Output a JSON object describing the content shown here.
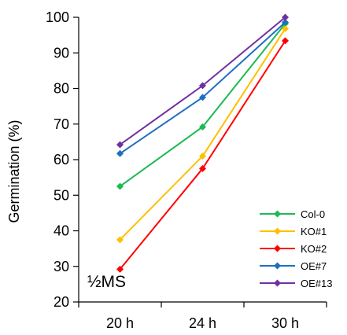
{
  "chart_data": {
    "type": "line",
    "title": "",
    "xlabel": "",
    "ylabel": "Germination (%)",
    "categories": [
      "20 h",
      "24 h",
      "30 h"
    ],
    "ylim": [
      20,
      100
    ],
    "yticks": [
      20,
      30,
      40,
      50,
      60,
      70,
      80,
      90,
      100
    ],
    "grid": false,
    "legend_position": "bottom-right",
    "annotation": "½MS",
    "series": [
      {
        "name": "Col-0",
        "color": "#1db954",
        "values": [
          52.5,
          69.2,
          98.2
        ]
      },
      {
        "name": "KO#1",
        "color": "#ffc000",
        "values": [
          37.5,
          61.0,
          96.8
        ]
      },
      {
        "name": "KO#2",
        "color": "#ff0000",
        "values": [
          29.2,
          57.5,
          93.4
        ]
      },
      {
        "name": "OE#7",
        "color": "#1f6fc0",
        "values": [
          61.7,
          77.5,
          98.6
        ]
      },
      {
        "name": "OE#13",
        "color": "#7030a0",
        "values": [
          64.2,
          80.8,
          100.0
        ]
      }
    ]
  }
}
